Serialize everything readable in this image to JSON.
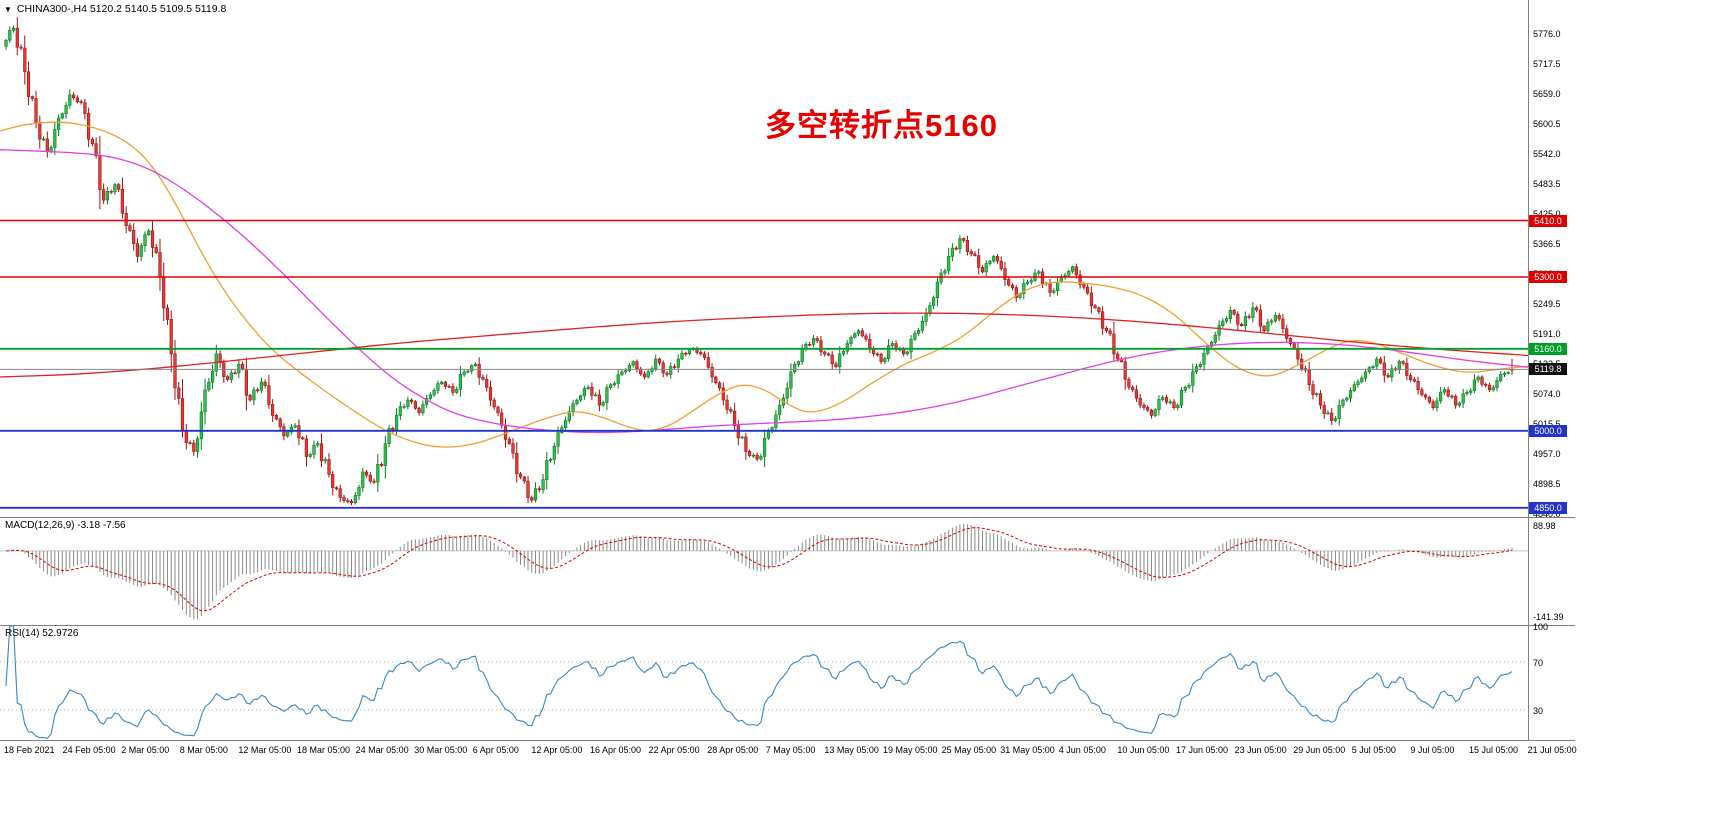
{
  "header": {
    "dropdown_icon": "▼",
    "title": "CHINA300-,H4 5120.2 5140.5 5109.5 5119.8"
  },
  "annotation": {
    "text": "多空转折点5160",
    "color": "#e60000"
  },
  "colors": {
    "candle_up_fill": "#2fbf4f",
    "candle_up_stroke": "#0e7a22",
    "candle_down_fill": "#e53935",
    "candle_down_stroke": "#9c1414",
    "ma_fast": "#f0a030",
    "ma_mid": "#e040e0",
    "ma_slow": "#dd2222",
    "macd_hist": "#8a8a8a",
    "macd_signal": "#dd0000",
    "rsi_line": "#3a87c8",
    "axis_text": "#000000",
    "current_price_bg": "#111111",
    "separator": "#808080"
  },
  "chart_data": {
    "type": "candlestick+indicators",
    "symbol": "CHINA300-",
    "timeframe": "H4",
    "last_ohlc": {
      "open": 5120.2,
      "high": 5140.5,
      "low": 5109.5,
      "close": 5119.8
    },
    "main": {
      "ylim": [
        4832,
        5840
      ],
      "candles_per_segment": 3,
      "price_path": [
        5750,
        5785,
        5700,
        5600,
        5545,
        5610,
        5655,
        5640,
        5560,
        5450,
        5480,
        5400,
        5340,
        5390,
        5300,
        5150,
        5000,
        4960,
        5080,
        5150,
        5100,
        5130,
        5060,
        5095,
        5030,
        4990,
        5010,
        4950,
        4975,
        4915,
        4870,
        4860,
        4920,
        4900,
        4975,
        5030,
        5060,
        5035,
        5070,
        5095,
        5075,
        5115,
        5130,
        5085,
        5035,
        4975,
        4910,
        4865,
        4905,
        4970,
        5020,
        5060,
        5085,
        5050,
        5090,
        5115,
        5135,
        5105,
        5140,
        5110,
        5140,
        5160,
        5150,
        5105,
        5060,
        5010,
        4960,
        4945,
        5000,
        5050,
        5115,
        5160,
        5180,
        5150,
        5125,
        5170,
        5195,
        5160,
        5135,
        5170,
        5150,
        5190,
        5230,
        5290,
        5340,
        5375,
        5345,
        5310,
        5340,
        5295,
        5260,
        5290,
        5310,
        5270,
        5300,
        5320,
        5280,
        5240,
        5195,
        5140,
        5085,
        5050,
        5030,
        5065,
        5045,
        5085,
        5125,
        5165,
        5205,
        5235,
        5205,
        5240,
        5195,
        5225,
        5180,
        5140,
        5090,
        5050,
        5020,
        5060,
        5090,
        5115,
        5140,
        5105,
        5135,
        5100,
        5070,
        5045,
        5080,
        5050,
        5075,
        5105,
        5080,
        5110,
        5120
      ],
      "moving_averages": [
        {
          "name": "ma-fast-line",
          "color": "#f0a030",
          "points": [
            [
              0,
              5585
            ],
            [
              0.02,
              5600
            ],
            [
              0.045,
              5603
            ],
            [
              0.07,
              5585
            ],
            [
              0.09,
              5550
            ],
            [
              0.105,
              5495
            ],
            [
              0.12,
              5415
            ],
            [
              0.135,
              5330
            ],
            [
              0.15,
              5258
            ],
            [
              0.165,
              5200
            ],
            [
              0.18,
              5152
            ],
            [
              0.2,
              5105
            ],
            [
              0.22,
              5062
            ],
            [
              0.24,
              5022
            ],
            [
              0.26,
              4988
            ],
            [
              0.285,
              4966
            ],
            [
              0.31,
              4972
            ],
            [
              0.335,
              5000
            ],
            [
              0.36,
              5028
            ],
            [
              0.378,
              5040
            ],
            [
              0.395,
              5026
            ],
            [
              0.41,
              5008
            ],
            [
              0.425,
              4998
            ],
            [
              0.44,
              5012
            ],
            [
              0.455,
              5042
            ],
            [
              0.47,
              5072
            ],
            [
              0.485,
              5092
            ],
            [
              0.5,
              5082
            ],
            [
              0.515,
              5052
            ],
            [
              0.53,
              5032
            ],
            [
              0.55,
              5052
            ],
            [
              0.57,
              5092
            ],
            [
              0.59,
              5128
            ],
            [
              0.61,
              5152
            ],
            [
              0.63,
              5182
            ],
            [
              0.65,
              5232
            ],
            [
              0.67,
              5275
            ],
            [
              0.69,
              5292
            ],
            [
              0.71,
              5288
            ],
            [
              0.73,
              5280
            ],
            [
              0.75,
              5262
            ],
            [
              0.77,
              5225
            ],
            [
              0.79,
              5168
            ],
            [
              0.81,
              5120
            ],
            [
              0.83,
              5102
            ],
            [
              0.85,
              5128
            ],
            [
              0.87,
              5162
            ],
            [
              0.885,
              5178
            ],
            [
              0.9,
              5172
            ],
            [
              0.92,
              5148
            ],
            [
              0.94,
              5125
            ],
            [
              0.96,
              5112
            ],
            [
              0.98,
              5120
            ],
            [
              1,
              5126
            ]
          ]
        },
        {
          "name": "ma-mid-line",
          "color": "#e040e0",
          "points": [
            [
              0,
              5548
            ],
            [
              0.03,
              5545
            ],
            [
              0.06,
              5540
            ],
            [
              0.08,
              5530
            ],
            [
              0.1,
              5508
            ],
            [
              0.12,
              5472
            ],
            [
              0.14,
              5428
            ],
            [
              0.16,
              5378
            ],
            [
              0.18,
              5322
            ],
            [
              0.2,
              5262
            ],
            [
              0.22,
              5202
            ],
            [
              0.24,
              5145
            ],
            [
              0.26,
              5095
            ],
            [
              0.28,
              5058
            ],
            [
              0.3,
              5030
            ],
            [
              0.33,
              5010
            ],
            [
              0.36,
              5000
            ],
            [
              0.39,
              4996
            ],
            [
              0.42,
              4999
            ],
            [
              0.45,
              5006
            ],
            [
              0.48,
              5012
            ],
            [
              0.51,
              5016
            ],
            [
              0.54,
              5020
            ],
            [
              0.57,
              5028
            ],
            [
              0.6,
              5040
            ],
            [
              0.63,
              5058
            ],
            [
              0.66,
              5082
            ],
            [
              0.69,
              5106
            ],
            [
              0.72,
              5130
            ],
            [
              0.75,
              5150
            ],
            [
              0.78,
              5163
            ],
            [
              0.81,
              5171
            ],
            [
              0.84,
              5173
            ],
            [
              0.87,
              5170
            ],
            [
              0.9,
              5162
            ],
            [
              0.93,
              5150
            ],
            [
              0.96,
              5137
            ],
            [
              1,
              5124
            ]
          ]
        },
        {
          "name": "ma-slow-line",
          "color": "#dd2222",
          "points": [
            [
              0,
              5105
            ],
            [
              0.05,
              5110
            ],
            [
              0.1,
              5121
            ],
            [
              0.15,
              5136
            ],
            [
              0.2,
              5152
            ],
            [
              0.25,
              5168
            ],
            [
              0.3,
              5181
            ],
            [
              0.35,
              5193
            ],
            [
              0.4,
              5205
            ],
            [
              0.45,
              5215
            ],
            [
              0.5,
              5222
            ],
            [
              0.55,
              5228
            ],
            [
              0.6,
              5230
            ],
            [
              0.65,
              5228
            ],
            [
              0.7,
              5222
            ],
            [
              0.75,
              5212
            ],
            [
              0.8,
              5199
            ],
            [
              0.85,
              5184
            ],
            [
              0.9,
              5169
            ],
            [
              0.95,
              5157
            ],
            [
              1,
              5147
            ]
          ]
        }
      ],
      "levels": [
        {
          "value": 5410.0,
          "label": "5410.0",
          "color": "#dd0000",
          "width": 1.4
        },
        {
          "value": 5300.0,
          "label": "5300.0",
          "color": "#dd0000",
          "width": 1.4
        },
        {
          "value": 5160.0,
          "label": "5160.0",
          "color": "#00a028",
          "width": 1.8
        },
        {
          "value": 5000.0,
          "label": "5000.0",
          "color": "#2233cc",
          "width": 1.8
        },
        {
          "value": 4850.0,
          "label": "4850.0",
          "color": "#2233cc",
          "width": 1.8
        }
      ],
      "current_price": {
        "value": 5119.8,
        "label": "5119.8"
      },
      "price_axis_ticks": [
        5776.0,
        5717.5,
        5659.0,
        5600.5,
        5542.0,
        5483.5,
        5425.0,
        5366.5,
        5308.0,
        5249.5,
        5191.0,
        5132.5,
        5074.0,
        5015.5,
        4957.0,
        4898.5,
        4840.0
      ]
    },
    "macd": {
      "label": "MACD(12,26,9) -3.18 -7.56",
      "params": [
        12,
        26,
        9
      ],
      "current": {
        "macd": -3.18,
        "signal": -7.56
      },
      "axis_labels": [
        "88.98",
        "-141.39"
      ]
    },
    "rsi": {
      "label": "RSI(14) 52.9726",
      "period": 14,
      "current": 52.9726,
      "axis_labels": [
        [
          100,
          "100"
        ],
        [
          70,
          "70"
        ],
        [
          30,
          "30"
        ]
      ],
      "levels": [
        70,
        30
      ],
      "ylim": [
        5,
        100
      ]
    },
    "time_axis": [
      "18 Feb 2021",
      "24 Feb 05:00",
      "2 Mar 05:00",
      "8 Mar 05:00",
      "12 Mar 05:00",
      "18 Mar 05:00",
      "24 Mar 05:00",
      "30 Mar 05:00",
      "6 Apr 05:00",
      "12 Apr 05:00",
      "16 Apr 05:00",
      "22 Apr 05:00",
      "28 Apr 05:00",
      "7 May 05:00",
      "13 May 05:00",
      "19 May 05:00",
      "25 May 05:00",
      "31 May 05:00",
      "4 Jun 05:00",
      "10 Jun 05:00",
      "17 Jun 05:00",
      "23 Jun 05:00",
      "29 Jun 05:00",
      "5 Jul 05:00",
      "9 Jul 05:00",
      "15 Jul 05:00",
      "21 Jul 05:00"
    ]
  }
}
